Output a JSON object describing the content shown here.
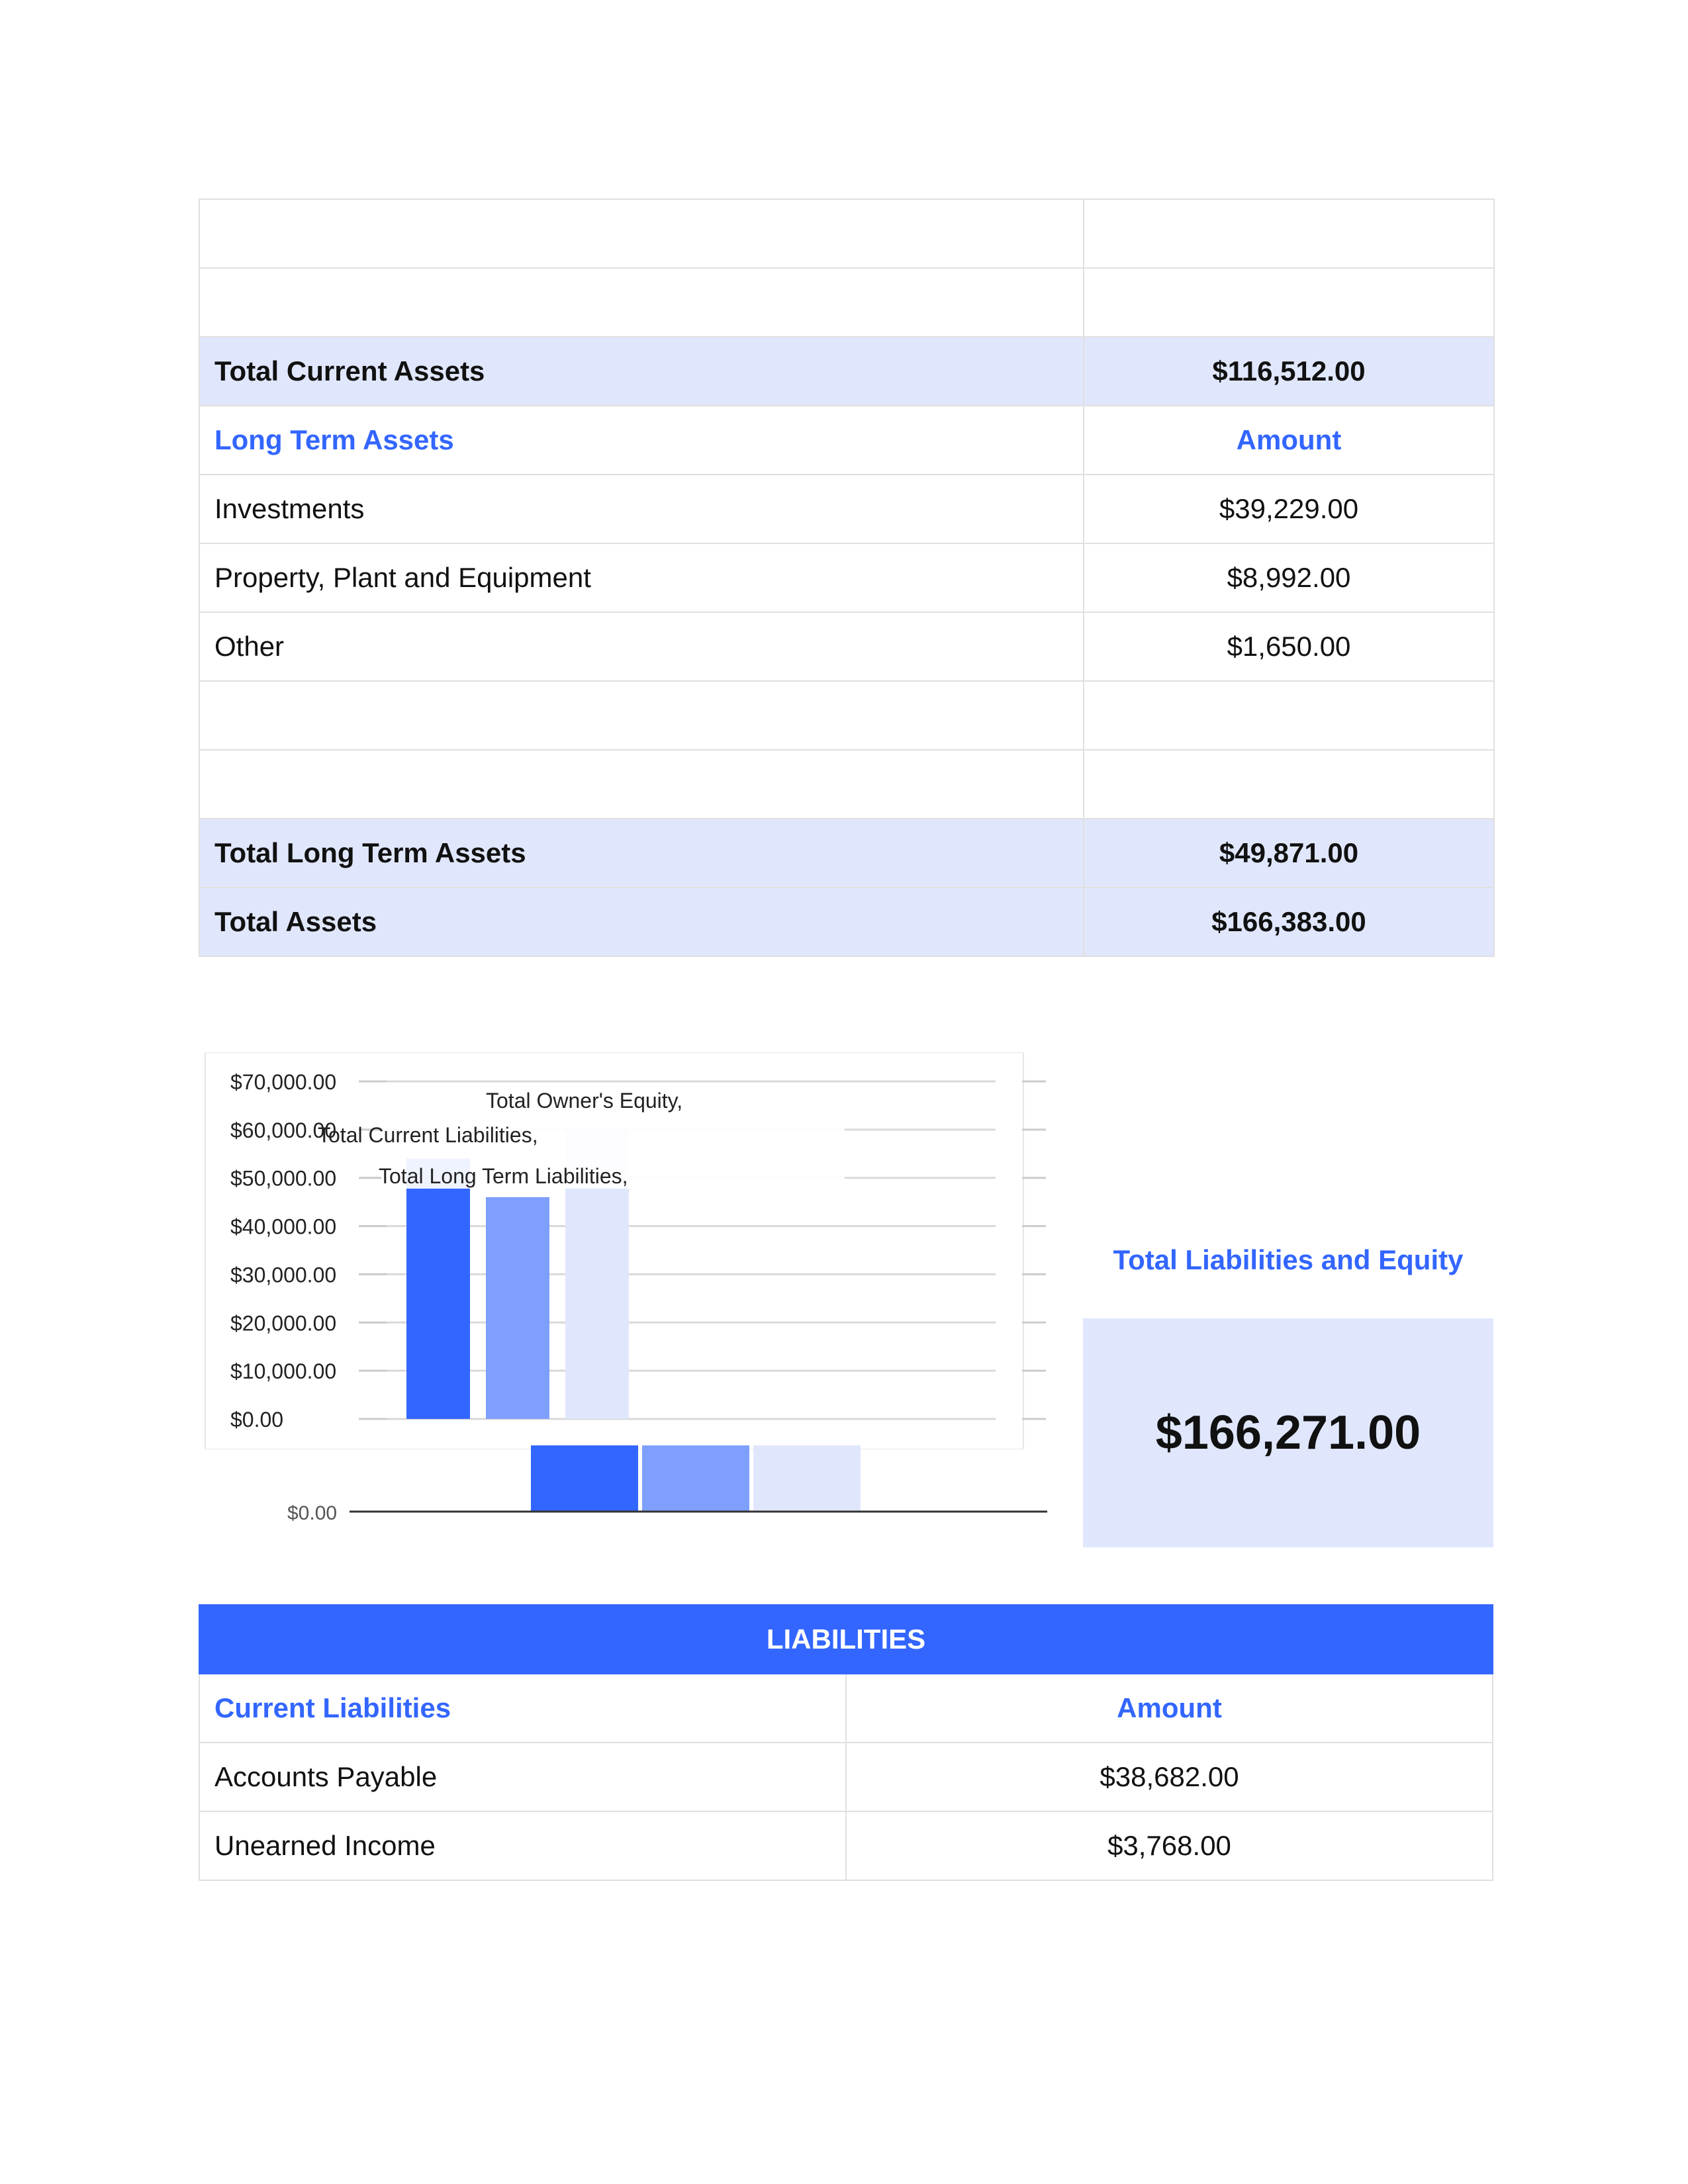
{
  "assets": {
    "rows": [
      {
        "label": "",
        "amount": ""
      },
      {
        "label": "",
        "amount": ""
      },
      {
        "label": "Total Current Assets",
        "amount": "$116,512.00"
      },
      {
        "label": "Long Term Assets",
        "amount": "Amount"
      },
      {
        "label": "Investments",
        "amount": "$39,229.00"
      },
      {
        "label": "Property, Plant and Equipment",
        "amount": "$8,992.00"
      },
      {
        "label": "Other",
        "amount": "$1,650.00"
      },
      {
        "label": "",
        "amount": ""
      },
      {
        "label": "",
        "amount": ""
      },
      {
        "label": "Total Long Term Assets",
        "amount": "$49,871.00"
      },
      {
        "label": "Total Assets",
        "amount": "$166,383.00"
      }
    ]
  },
  "chart_data": {
    "type": "bar",
    "title": "",
    "xlabel": "",
    "ylabel": "",
    "ylim": [
      0,
      70000
    ],
    "y_ticks": [
      "$70,000.00",
      "$60,000.00",
      "$50,000.00",
      "$40,000.00",
      "$30,000.00",
      "$20,000.00",
      "$10,000.00",
      "$0.00"
    ],
    "bottom_axis_label": "$0.00",
    "categories": [
      "Total Current Liabilities,",
      "Total Long Term Liabilities,",
      "Total Owner's Equity,"
    ],
    "values": [
      54000,
      46000,
      60500
    ],
    "colors": [
      "#3366ff",
      "#7f9fff",
      "#e0e7fd"
    ],
    "grid": true
  },
  "summary": {
    "label": "Total Liabilities and Equity",
    "value": "$166,271.00"
  },
  "liabilities": {
    "banner": "LIABILITIES",
    "header": {
      "label": "Current Liabilities",
      "amount": "Amount"
    },
    "rows": [
      {
        "label": "Accounts Payable",
        "amount": "$38,682.00"
      },
      {
        "label": "Unearned Income",
        "amount": "$3,768.00"
      }
    ]
  }
}
